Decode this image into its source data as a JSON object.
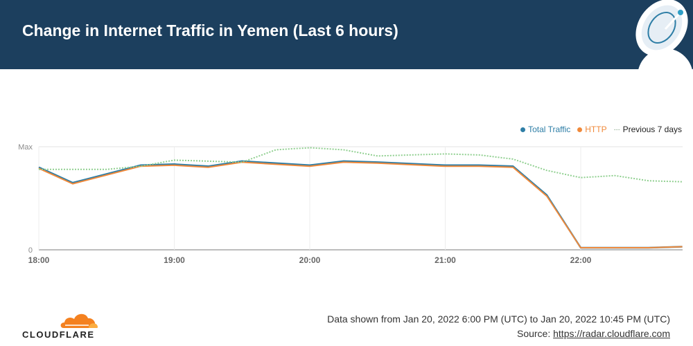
{
  "header": {
    "title": "Change in Internet Traffic in Yemen (Last 6 hours)"
  },
  "legend": {
    "total_traffic": "Total Traffic",
    "http": "HTTP",
    "previous": "Previous 7 days",
    "previous_marker": "···"
  },
  "colors": {
    "header_bg": "#1c3f5e",
    "total_traffic": "#2e7ea6",
    "http": "#f0893a",
    "previous": "#8fcf8f",
    "cloudflare_orange": "#f48120"
  },
  "chart_data": {
    "type": "line",
    "x_ticks": [
      "18:00",
      "19:00",
      "20:00",
      "21:00",
      "22:00"
    ],
    "y_ticks": [
      "0",
      "Max"
    ],
    "x_range_hours": [
      18.0,
      22.75
    ],
    "y_range": [
      0,
      100
    ],
    "grid": true,
    "legend_position": "top-right",
    "series": [
      {
        "name": "Total Traffic",
        "x": [
          18.0,
          18.25,
          18.75,
          19.0,
          19.25,
          19.5,
          20.0,
          20.25,
          20.5,
          21.0,
          21.25,
          21.5,
          21.75,
          22.0,
          22.25,
          22.5,
          22.75
        ],
        "y": [
          80,
          65,
          82,
          83,
          81,
          86,
          82,
          86,
          85,
          82,
          82,
          81,
          53,
          2,
          2,
          2,
          3
        ]
      },
      {
        "name": "HTTP",
        "x": [
          18.0,
          18.25,
          18.75,
          19.0,
          19.25,
          19.5,
          20.0,
          20.25,
          20.5,
          21.0,
          21.25,
          21.5,
          21.75,
          22.0,
          22.25,
          22.5,
          22.75
        ],
        "y": [
          79,
          64,
          81,
          82,
          80,
          85,
          81,
          85,
          84,
          81,
          81,
          80,
          52,
          2,
          2,
          2,
          3
        ]
      },
      {
        "name": "Previous 7 days",
        "x": [
          18.0,
          18.25,
          18.5,
          18.75,
          19.0,
          19.25,
          19.5,
          19.75,
          20.0,
          20.25,
          20.5,
          20.75,
          21.0,
          21.25,
          21.5,
          21.75,
          22.0,
          22.25,
          22.5,
          22.75
        ],
        "y": [
          78,
          78,
          78,
          81,
          87,
          86,
          85,
          97,
          99,
          97,
          91,
          92,
          93,
          92,
          88,
          77,
          70,
          72,
          67,
          66
        ]
      }
    ]
  },
  "footer": {
    "range_text": "Data shown from Jan 20, 2022 6:00 PM (UTC) to Jan 20, 2022 10:45 PM (UTC)",
    "source_label": "Source:",
    "source_link": "https://radar.cloudflare.com",
    "brand": "CLOUDFLARE"
  }
}
